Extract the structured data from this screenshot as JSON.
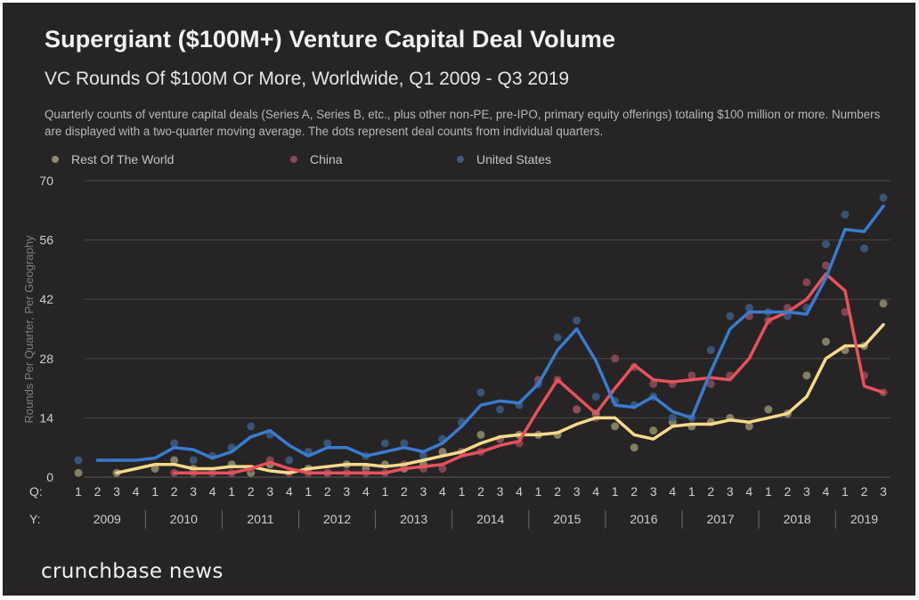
{
  "header": {
    "title": "Supergiant ($100M+) Venture Capital Deal Volume",
    "subtitle": "VC Rounds Of $100M Or More, Worldwide, Q1 2009 - Q3 2019",
    "description": "Quarterly counts of venture capital deals (Series A, Series B, etc., plus other non-PE, pre-IPO, primary equity offerings) totaling $100 million or more. Numbers are displayed with a two-quarter moving average. The dots represent deal counts from individual quarters."
  },
  "footer": {
    "logo_text": "crunchbase news"
  },
  "chart_data": {
    "type": "line",
    "title": "Supergiant ($100M+) Venture Capital Deal Volume",
    "subtitle": "VC Rounds Of $100M Or More, Worldwide, Q1 2009 - Q3 2019",
    "xlabel": "",
    "ylabel": "Rounds Per Quarter, Per Geography",
    "ylim": [
      0,
      70
    ],
    "yticks": [
      0,
      14,
      28,
      42,
      56,
      70
    ],
    "grid": true,
    "legend_position": "top",
    "q_axis_label": "Q:",
    "y_axis_label": "Y:",
    "quarters": [
      "1",
      "2",
      "3",
      "4",
      "1",
      "2",
      "3",
      "4",
      "1",
      "2",
      "3",
      "4",
      "1",
      "2",
      "3",
      "4",
      "1",
      "2",
      "3",
      "4",
      "1",
      "2",
      "3",
      "4",
      "1",
      "2",
      "3",
      "4",
      "1",
      "2",
      "3",
      "4",
      "1",
      "2",
      "3",
      "4",
      "1",
      "2",
      "3",
      "4",
      "1",
      "2",
      "3"
    ],
    "years": [
      {
        "label": "2009",
        "count": 4
      },
      {
        "label": "2010",
        "count": 4
      },
      {
        "label": "2011",
        "count": 4
      },
      {
        "label": "2012",
        "count": 4
      },
      {
        "label": "2013",
        "count": 4
      },
      {
        "label": "2014",
        "count": 4
      },
      {
        "label": "2015",
        "count": 4
      },
      {
        "label": "2016",
        "count": 4
      },
      {
        "label": "2017",
        "count": 4
      },
      {
        "label": "2018",
        "count": 4
      },
      {
        "label": "2019",
        "count": 3
      }
    ],
    "series": [
      {
        "name": "Rest Of The World",
        "line_color": "#f6d98a",
        "dot_color": "#8f8a6a",
        "moving_average": [
          null,
          null,
          1,
          2,
          3,
          3,
          2,
          2,
          2.5,
          2.5,
          1.5,
          1,
          2,
          2.5,
          3,
          3,
          2.5,
          3,
          4,
          5,
          6,
          8,
          9.5,
          10,
          10,
          10.5,
          12.5,
          14,
          14,
          10,
          9,
          12,
          12.5,
          12.5,
          13.5,
          13,
          14,
          15,
          19,
          28,
          31,
          31,
          36
        ],
        "quarterly": [
          1,
          null,
          1,
          null,
          2,
          4,
          2,
          null,
          3,
          1,
          3,
          null,
          2,
          1,
          3,
          2,
          3,
          2,
          3,
          6,
          6,
          10,
          9,
          10,
          10,
          10,
          16,
          15,
          12,
          7,
          11,
          13,
          12,
          13,
          14,
          12,
          16,
          15,
          24,
          32,
          30,
          31,
          41
        ]
      },
      {
        "name": "China",
        "line_color": "#e8505b",
        "dot_color": "#8a4a55",
        "moving_average": [
          null,
          null,
          null,
          null,
          null,
          1,
          1,
          1,
          1,
          2,
          3.5,
          2,
          1,
          1,
          1,
          1,
          1,
          2,
          2.5,
          3,
          5,
          6,
          7.5,
          8.5,
          16,
          23,
          19,
          15,
          21,
          26.5,
          23,
          22.5,
          23,
          23.5,
          23,
          28,
          37,
          39,
          42,
          48,
          44,
          21.5,
          20
        ],
        "quarterly": [
          null,
          null,
          null,
          null,
          null,
          1,
          1,
          1,
          1,
          2,
          4,
          1,
          1,
          1,
          1,
          1,
          1,
          3,
          2,
          2,
          6,
          6,
          9,
          8,
          23,
          23,
          16,
          14,
          28,
          26,
          22,
          22,
          24,
          22,
          24,
          38,
          37,
          40,
          46,
          50,
          39,
          24,
          20
        ]
      },
      {
        "name": "United States",
        "line_color": "#3a7bd0",
        "dot_color": "#3c5a7e",
        "moving_average": [
          null,
          4,
          4,
          4,
          4.5,
          7,
          6.5,
          4.5,
          6,
          9.5,
          11,
          7.5,
          5,
          7,
          7,
          5,
          6,
          7,
          6,
          8,
          12,
          17,
          18,
          17.5,
          22,
          30,
          35,
          27.5,
          17,
          16.5,
          19,
          15.5,
          14,
          25,
          35,
          39,
          39,
          39,
          38.5,
          47,
          58.5,
          58,
          64
        ],
        "quarterly": [
          4,
          null,
          null,
          null,
          null,
          8,
          4,
          5,
          7,
          12,
          10,
          4,
          6,
          8,
          null,
          5,
          8,
          8,
          5,
          9,
          13,
          20,
          16,
          17,
          22,
          33,
          37,
          19,
          18,
          17,
          19,
          14,
          14,
          30,
          38,
          40,
          39,
          38,
          40,
          55,
          62,
          54,
          66
        ]
      }
    ]
  }
}
